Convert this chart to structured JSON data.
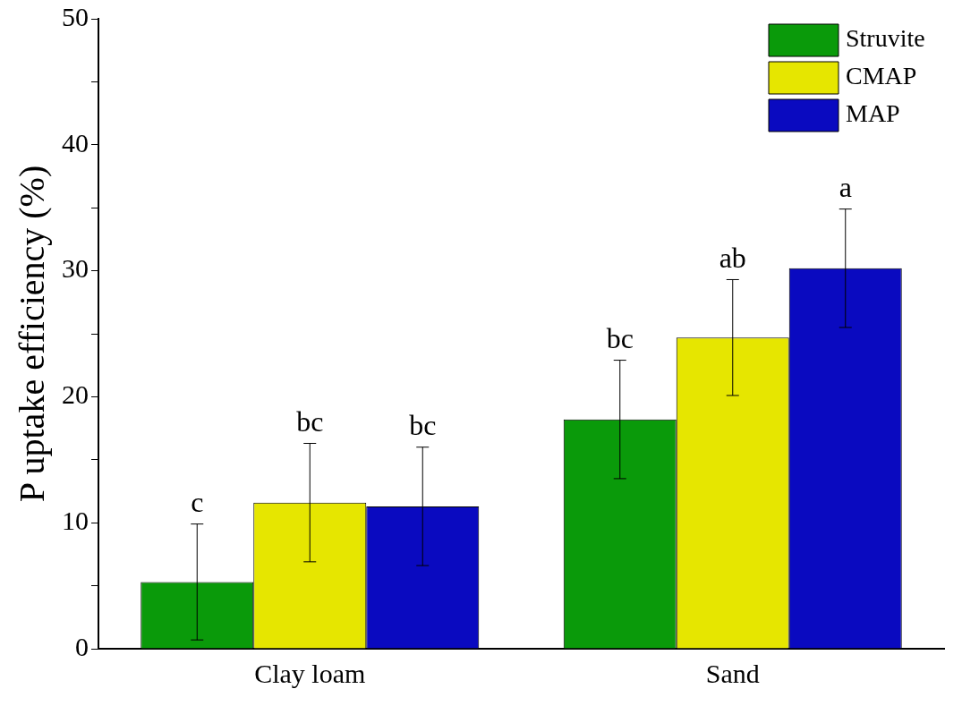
{
  "chart_data": {
    "type": "bar",
    "ylabel": "P uptake efficiency (%)",
    "categories": [
      "Clay loam",
      "Sand"
    ],
    "series": [
      {
        "name": "Struvite",
        "color": "#0a9a0a",
        "values": [
          5.3,
          18.2
        ],
        "errors": [
          4.6,
          4.7
        ],
        "value_labels": [
          "c",
          "bc"
        ]
      },
      {
        "name": "CMAP",
        "color": "#e6e600",
        "values": [
          11.6,
          24.7
        ],
        "errors": [
          4.7,
          4.6
        ],
        "value_labels": [
          "bc",
          "ab"
        ]
      },
      {
        "name": "MAP",
        "color": "#0a0ac0",
        "values": [
          11.3,
          30.2
        ],
        "errors": [
          4.7,
          4.7
        ],
        "value_labels": [
          "bc",
          "a"
        ]
      }
    ],
    "ylim": [
      0,
      50
    ],
    "yticks": [
      0,
      {
        "value": 5,
        "label": null
      },
      10,
      {
        "value": 15,
        "label": null
      },
      20,
      {
        "value": 25,
        "label": null
      },
      30,
      {
        "value": 35,
        "label": null
      },
      40,
      {
        "value": 45,
        "label": null
      },
      50
    ],
    "grid": false,
    "legend": "top right"
  }
}
